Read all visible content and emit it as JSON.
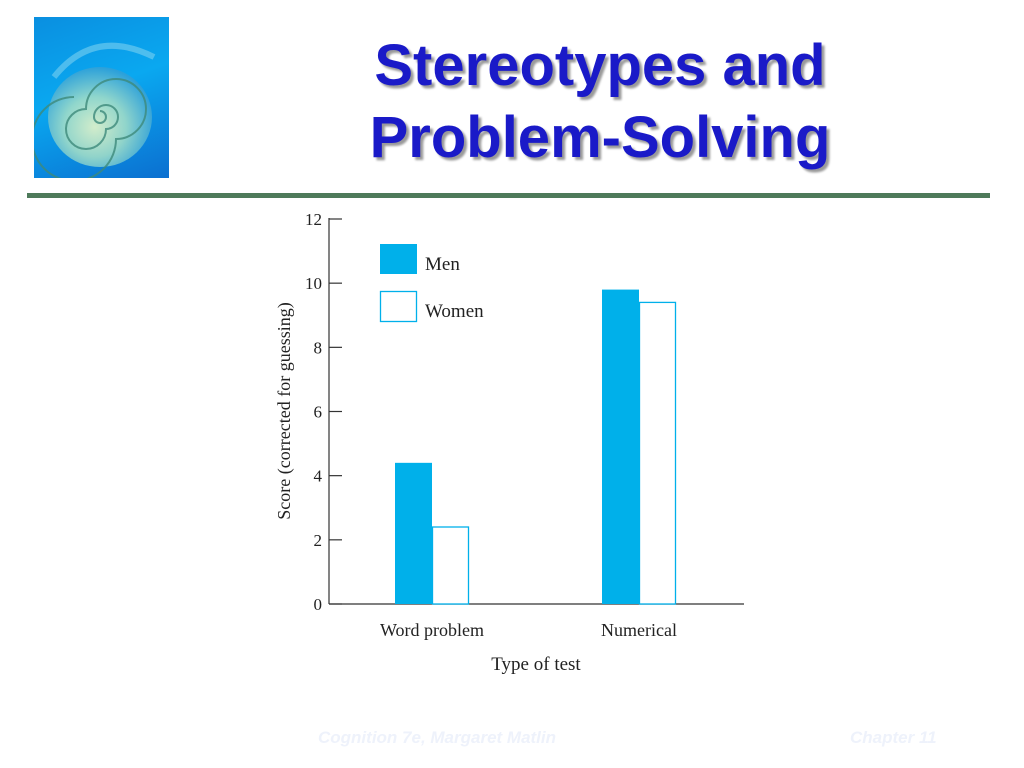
{
  "slide": {
    "title_line1": "Stereotypes and",
    "title_line2": "Problem-Solving",
    "footer_left": "Cognition 7e, Margaret Matlin",
    "footer_right": "Chapter 11",
    "logo_icon": "nautilus-shell-icon"
  },
  "colors": {
    "title": "#1a1ac8",
    "divider": "#4e7a5a",
    "men": "#00b0ea",
    "women": "#ffffff",
    "women_border": "#00b0ea"
  },
  "chart_data": {
    "type": "bar",
    "categories": [
      "Word problem",
      "Numerical"
    ],
    "series": [
      {
        "name": "Men",
        "values": [
          4.4,
          9.8
        ]
      },
      {
        "name": "Women",
        "values": [
          2.4,
          9.4
        ]
      }
    ],
    "title": "",
    "xlabel": "Type of test",
    "ylabel": "Score (corrected for guessing)",
    "ylim": [
      0,
      12
    ],
    "yticks": [
      0,
      2,
      4,
      6,
      8,
      10,
      12
    ],
    "ytick_labels": [
      "0",
      "2",
      "4",
      "6",
      "8",
      "10",
      "12"
    ],
    "legend": {
      "placement": "top-left",
      "entries": [
        "Men",
        "Women"
      ]
    },
    "grid": false
  }
}
